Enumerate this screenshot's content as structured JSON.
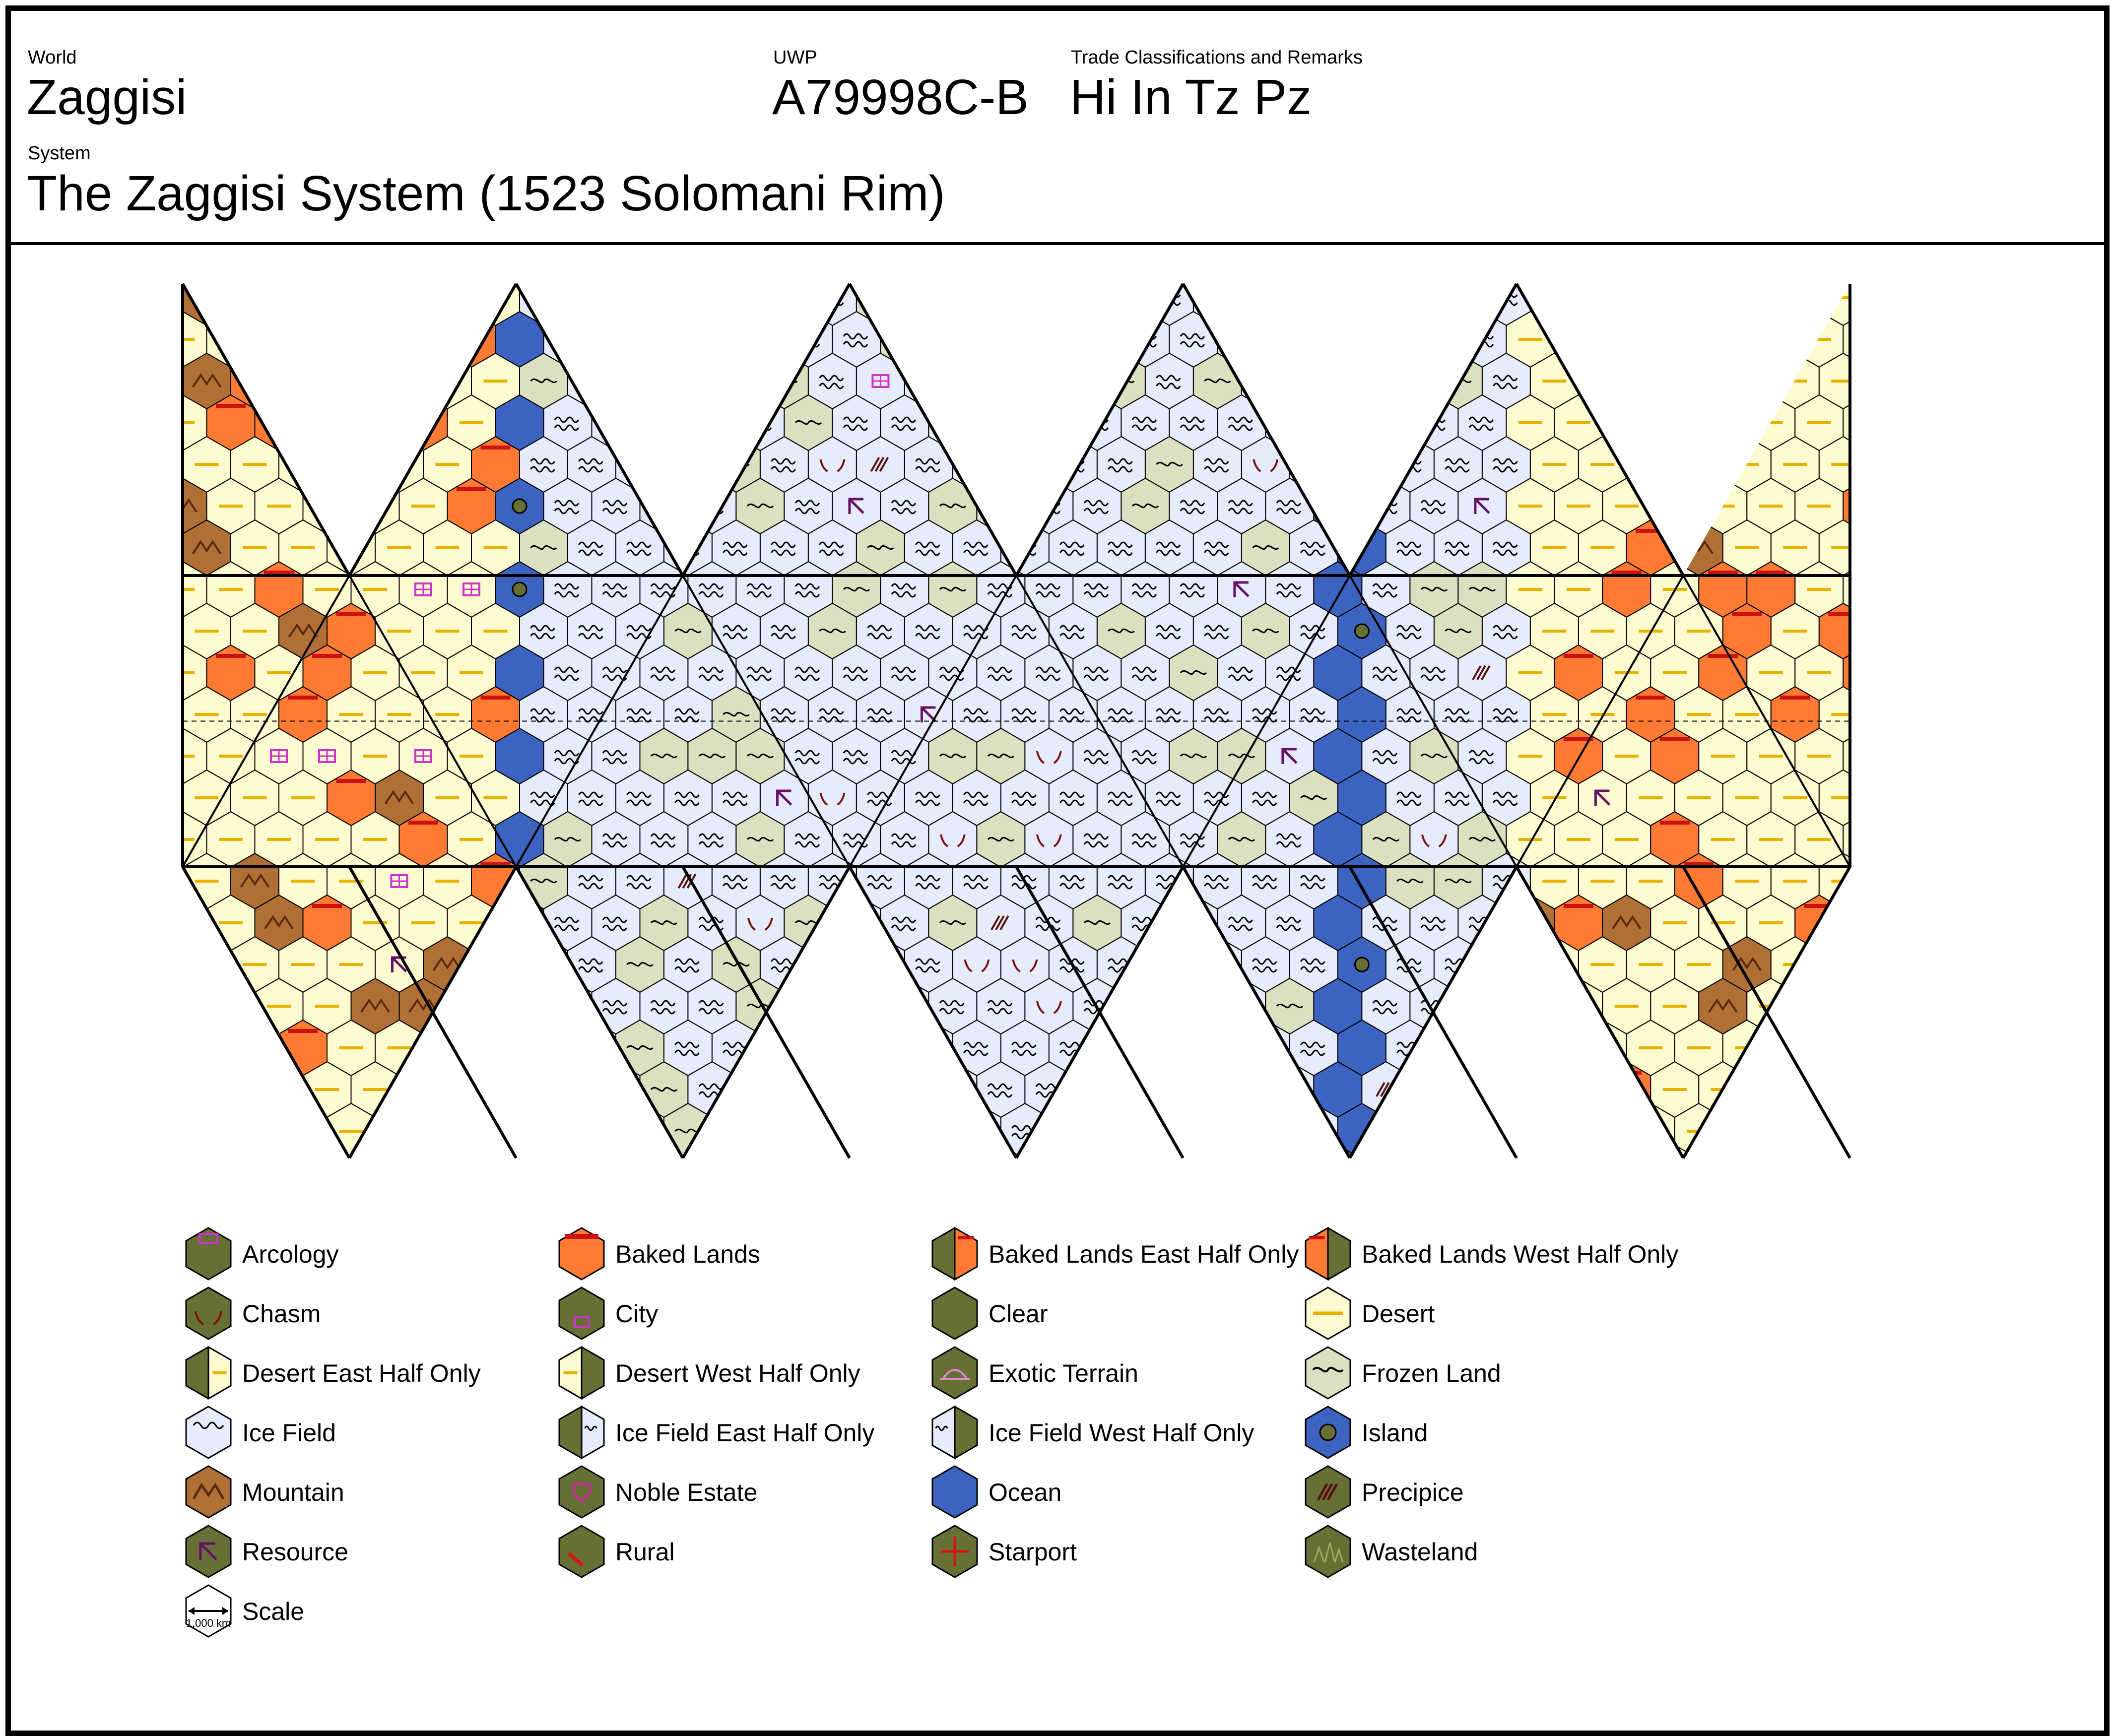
{
  "header": {
    "world_label": "World",
    "world_name": "Zaggisi",
    "uwp_label": "UWP",
    "uwp_value": "A79998C-B",
    "trade_label": "Trade Classifications and Remarks",
    "trade_value": "Hi In Tz Pz",
    "system_label": "System",
    "system_value": "The Zaggisi System (1523 Solomani Rim)"
  },
  "colors": {
    "desert": "#fffbd0",
    "desert_line": "#e8b100",
    "baked": "#ff7b33",
    "baked_mark": "#cc1111",
    "mountain": "#b07035",
    "mountain_mark": "#5a2a10",
    "ocean": "#3d63c0",
    "ice": "#e6ecfb",
    "frozen": "#dbe0c0",
    "clear": "#667035",
    "arcology": "#cc33cc",
    "resource": "#661166",
    "starport": "#dd1111",
    "wasteland": "#a2a860",
    "exotic": "#dd88cc"
  },
  "map": {
    "regions": [
      "desert",
      "ice",
      "ice",
      "ice",
      "desert",
      "desert",
      "ice",
      "ice",
      "ice",
      "desert",
      "desert",
      "ice",
      "ice",
      "ice",
      "desert",
      "desert",
      "ice",
      "ice",
      "ice",
      "desert"
    ]
  },
  "legend": {
    "items": [
      {
        "label": "Arcology",
        "icon": "arcology-icon",
        "fill": "#667035",
        "mark": "arcology"
      },
      {
        "label": "Baked Lands",
        "icon": "baked-lands-icon",
        "fill": "#ff7b33",
        "mark": "baked"
      },
      {
        "label": "Baked Lands East Half Only",
        "icon": "baked-lands-east-icon",
        "fill": "#667035",
        "mark": "baked-east"
      },
      {
        "label": "Baked Lands West Half Only",
        "icon": "baked-lands-west-icon",
        "fill": "#667035",
        "mark": "baked-west"
      },
      {
        "label": "Chasm",
        "icon": "chasm-icon",
        "fill": "#667035",
        "mark": "chasm"
      },
      {
        "label": "City",
        "icon": "city-icon",
        "fill": "#667035",
        "mark": "city"
      },
      {
        "label": "Clear",
        "icon": "clear-icon",
        "fill": "#667035",
        "mark": "none"
      },
      {
        "label": "Desert",
        "icon": "desert-icon",
        "fill": "#fffbd0",
        "mark": "desert"
      },
      {
        "label": "Desert East Half Only",
        "icon": "desert-east-icon",
        "fill": "#667035",
        "mark": "desert-east"
      },
      {
        "label": "Desert West Half Only",
        "icon": "desert-west-icon",
        "fill": "#667035",
        "mark": "desert-west"
      },
      {
        "label": "Exotic Terrain",
        "icon": "exotic-terrain-icon",
        "fill": "#667035",
        "mark": "exotic"
      },
      {
        "label": "Frozen Land",
        "icon": "frozen-land-icon",
        "fill": "#dbe0c0",
        "mark": "frozen"
      },
      {
        "label": "Ice Field",
        "icon": "ice-field-icon",
        "fill": "#e6ecfb",
        "mark": "ice"
      },
      {
        "label": "Ice Field East Half Only",
        "icon": "ice-field-east-icon",
        "fill": "#667035",
        "mark": "ice-east"
      },
      {
        "label": "Ice Field West Half Only",
        "icon": "ice-field-west-icon",
        "fill": "#667035",
        "mark": "ice-west"
      },
      {
        "label": "Island",
        "icon": "island-icon",
        "fill": "#3d63c0",
        "mark": "island"
      },
      {
        "label": "Mountain",
        "icon": "mountain-icon",
        "fill": "#b07035",
        "mark": "mountain"
      },
      {
        "label": "Noble Estate",
        "icon": "noble-estate-icon",
        "fill": "#667035",
        "mark": "noble"
      },
      {
        "label": "Ocean",
        "icon": "ocean-icon",
        "fill": "#3d63c0",
        "mark": "none"
      },
      {
        "label": "Precipice",
        "icon": "precipice-icon",
        "fill": "#667035",
        "mark": "precipice"
      },
      {
        "label": "Resource",
        "icon": "resource-icon",
        "fill": "#667035",
        "mark": "resource"
      },
      {
        "label": "Rural",
        "icon": "rural-icon",
        "fill": "#667035",
        "mark": "rural"
      },
      {
        "label": "Starport",
        "icon": "starport-icon",
        "fill": "#667035",
        "mark": "starport"
      },
      {
        "label": "Wasteland",
        "icon": "wasteland-icon",
        "fill": "#667035",
        "mark": "wasteland"
      },
      {
        "label": "Scale",
        "icon": "scale-icon",
        "fill": "#ffffff",
        "mark": "scale",
        "note": "1,000 km"
      }
    ]
  }
}
